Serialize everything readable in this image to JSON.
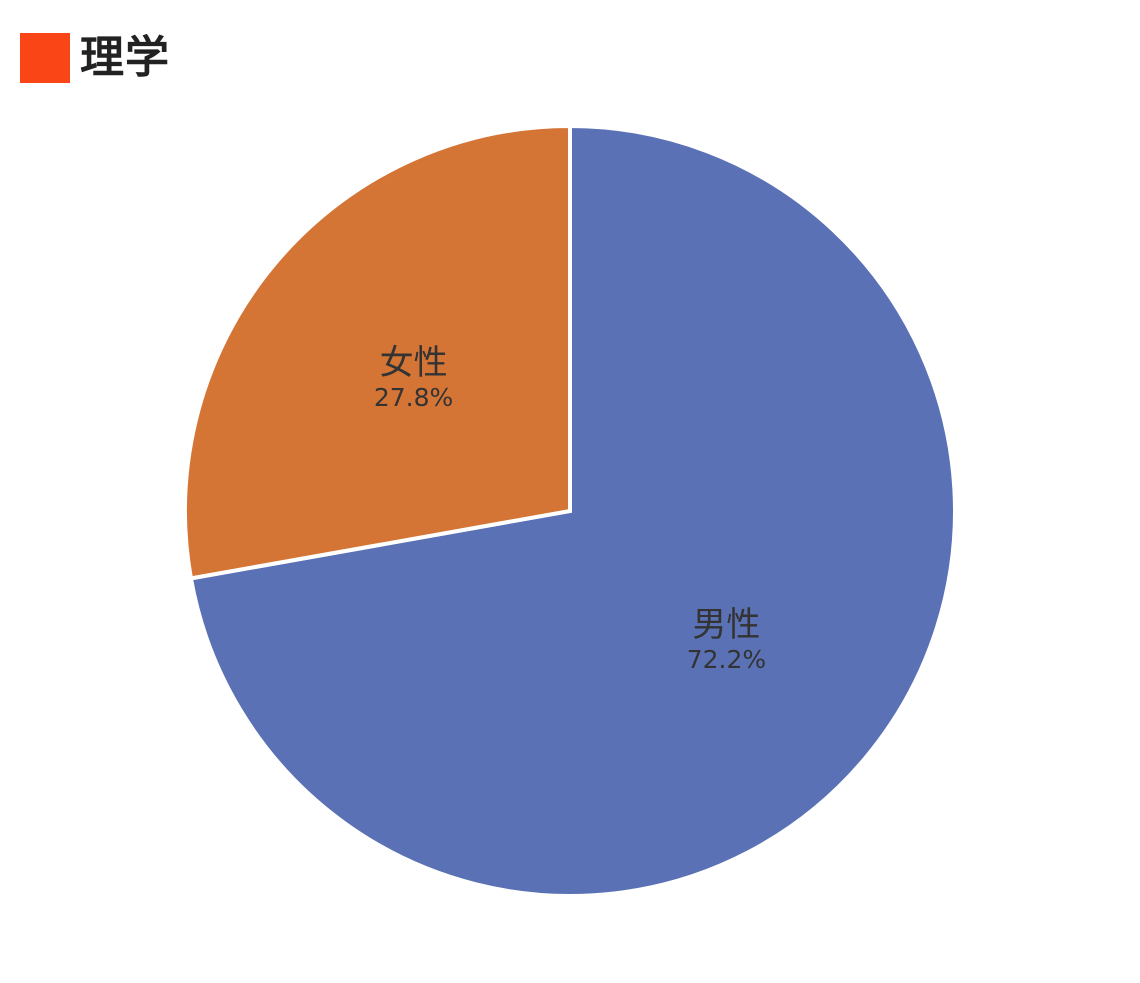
{
  "chart_data": {
    "type": "pie",
    "title": "理学",
    "title_color": "#FA4616",
    "start_angle_deg": 0,
    "direction": "clockwise",
    "slices": [
      {
        "label": "男性",
        "value": 72.2,
        "percent_label": "72.2%",
        "color": "#5A72B5"
      },
      {
        "label": "女性",
        "value": 27.8,
        "percent_label": "27.8%",
        "color": "#D47536"
      }
    ],
    "legend": "none"
  }
}
